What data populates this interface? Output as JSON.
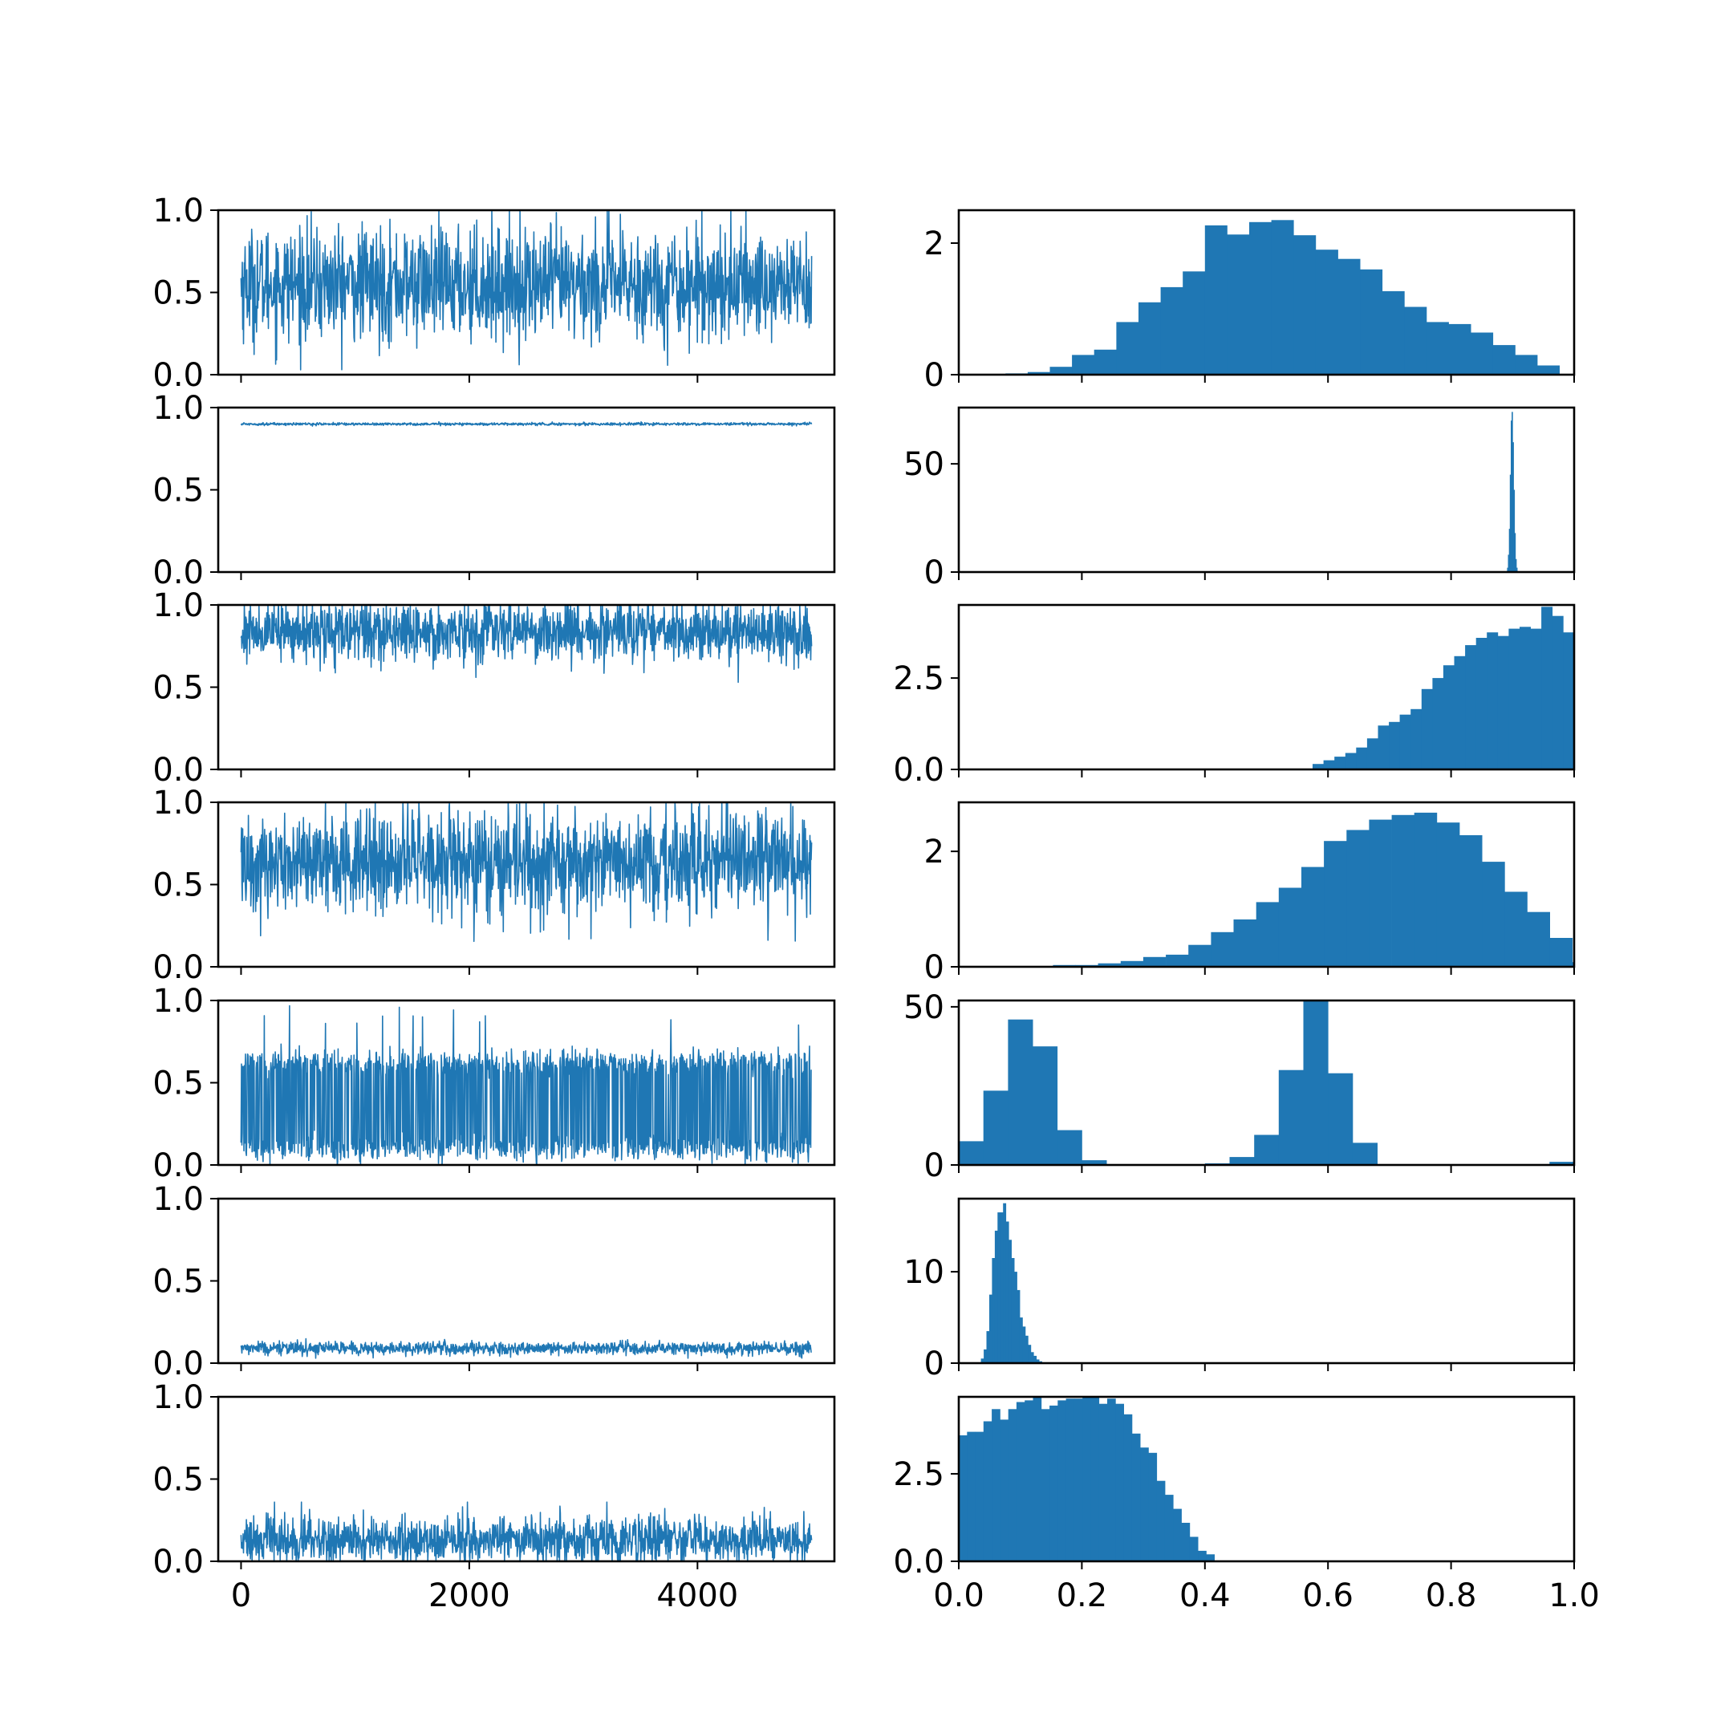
{
  "figure": {
    "layout": "7 rows x 2 columns; left column = MCMC traces, right column = histograms",
    "series_color": "#1f77b4"
  },
  "trace_axes": {
    "x_ticks": [
      "0",
      "2000",
      "4000"
    ],
    "y_ticks": [
      "0.0",
      "0.5",
      "1.0"
    ]
  },
  "hist_axes": {
    "x_ticks": [
      "0.0",
      "0.2",
      "0.4",
      "0.6",
      "0.8",
      "1.0"
    ]
  },
  "chart_data": [
    {
      "type": "line",
      "panel": "trace",
      "row": 1,
      "x_range": [
        0,
        5000
      ],
      "ylim": [
        0,
        1
      ],
      "mean": 0.55,
      "spread": 0.17,
      "low": 0.03,
      "high": 1.0,
      "samples": 5000
    },
    {
      "type": "bar",
      "panel": "histogram",
      "row": 1,
      "xlim": [
        0,
        1
      ],
      "ylim": [
        0,
        2.5
      ],
      "y_ticks": [
        "0",
        "2"
      ],
      "bin_start": 0.04,
      "bin_width": 0.036,
      "values": [
        0.01,
        0.02,
        0.04,
        0.12,
        0.3,
        0.38,
        0.8,
        1.1,
        1.33,
        1.57,
        2.27,
        2.13,
        2.32,
        2.35,
        2.12,
        1.9,
        1.76,
        1.6,
        1.27,
        1.03,
        0.8,
        0.77,
        0.64,
        0.45,
        0.3,
        0.14
      ]
    },
    {
      "type": "line",
      "panel": "trace",
      "row": 2,
      "x_range": [
        0,
        5000
      ],
      "ylim": [
        0,
        1
      ],
      "mean": 0.9,
      "spread": 0.004,
      "low": 0.885,
      "high": 0.915,
      "samples": 5000
    },
    {
      "type": "bar",
      "panel": "histogram",
      "row": 2,
      "xlim": [
        0,
        1
      ],
      "ylim": [
        0,
        76
      ],
      "y_ticks": [
        "0",
        "50"
      ],
      "bin_start": 0.891,
      "bin_width": 0.0015,
      "values": [
        2,
        8,
        20,
        45,
        70,
        74,
        60,
        38,
        18,
        6,
        2
      ]
    },
    {
      "type": "line",
      "panel": "trace",
      "row": 3,
      "x_range": [
        0,
        5000
      ],
      "ylim": [
        0,
        1
      ],
      "mean": 0.84,
      "spread": 0.09,
      "low": 0.53,
      "high": 1.0,
      "samples": 5000
    },
    {
      "type": "bar",
      "panel": "histogram",
      "row": 3,
      "xlim": [
        0,
        1
      ],
      "ylim": [
        0,
        4.5
      ],
      "y_ticks": [
        "0.0",
        "2.5"
      ],
      "bin_start": 0.575,
      "bin_width": 0.0177,
      "values": [
        0.15,
        0.25,
        0.35,
        0.45,
        0.6,
        0.85,
        1.2,
        1.3,
        1.5,
        1.65,
        2.2,
        2.5,
        2.85,
        3.1,
        3.4,
        3.6,
        3.75,
        3.65,
        3.85,
        3.9,
        3.85,
        4.45,
        4.2,
        3.75
      ]
    },
    {
      "type": "line",
      "panel": "trace",
      "row": 4,
      "x_range": [
        0,
        5000
      ],
      "ylim": [
        0,
        1
      ],
      "mean": 0.64,
      "spread": 0.16,
      "low": 0.08,
      "high": 1.0,
      "samples": 5000
    },
    {
      "type": "bar",
      "panel": "histogram",
      "row": 4,
      "xlim": [
        0,
        1
      ],
      "ylim": [
        0,
        2.85
      ],
      "y_ticks": [
        "0",
        "2"
      ],
      "bin_start": 0.153,
      "bin_width": 0.0367,
      "values": [
        0.03,
        0.03,
        0.06,
        0.1,
        0.17,
        0.21,
        0.38,
        0.6,
        0.82,
        1.12,
        1.37,
        1.73,
        2.18,
        2.37,
        2.55,
        2.63,
        2.67,
        2.5,
        2.28,
        1.82,
        1.3,
        0.95,
        0.5,
        0.08
      ]
    },
    {
      "type": "line",
      "panel": "trace",
      "row": 5,
      "x_range": [
        0,
        5000
      ],
      "ylim": [
        0,
        1
      ],
      "bimodal_modes": [
        0.1,
        0.62
      ],
      "max": 0.97,
      "samples": 5000
    },
    {
      "type": "bar",
      "panel": "histogram",
      "row": 5,
      "xlim": [
        0,
        1
      ],
      "ylim": [
        0,
        52
      ],
      "y_ticks": [
        "0",
        "50"
      ],
      "bin_start": 0.0,
      "bin_width": 0.04,
      "values": [
        7.5,
        23.5,
        46,
        37.5,
        11,
        1.5,
        0,
        0,
        0,
        0,
        0.5,
        2.5,
        9.5,
        30,
        52,
        29,
        7,
        0,
        0,
        0,
        0,
        0,
        0,
        0,
        1
      ]
    },
    {
      "type": "line",
      "panel": "trace",
      "row": 6,
      "x_range": [
        0,
        5000
      ],
      "ylim": [
        0,
        1
      ],
      "mean": 0.09,
      "spread": 0.02,
      "low": 0.03,
      "high": 0.2,
      "samples": 5000
    },
    {
      "type": "bar",
      "panel": "histogram",
      "row": 6,
      "xlim": [
        0,
        1
      ],
      "ylim": [
        0,
        18
      ],
      "y_ticks": [
        "0",
        "10"
      ],
      "bin_start": 0.036,
      "bin_width": 0.0045,
      "values": [
        0.5,
        1.5,
        3.5,
        7.5,
        11.5,
        14.5,
        16.5,
        16.5,
        17.5,
        15.5,
        13.5,
        11.5,
        10,
        8,
        5,
        4,
        3,
        2,
        1.2,
        0.8,
        0.4,
        0.2
      ]
    },
    {
      "type": "line",
      "panel": "trace",
      "row": 7,
      "x_range": [
        0,
        5000
      ],
      "ylim": [
        0,
        1
      ],
      "mean": 0.13,
      "spread": 0.07,
      "low": 0.0,
      "high": 0.36,
      "samples": 5000
    },
    {
      "type": "bar",
      "panel": "histogram",
      "row": 7,
      "xlim": [
        0,
        1
      ],
      "ylim": [
        0,
        4.7
      ],
      "y_ticks": [
        "0.0",
        "2.5"
      ],
      "bin_start": 0.0,
      "bin_width": 0.0134,
      "values": [
        3.6,
        3.7,
        3.7,
        4.0,
        4.35,
        4.05,
        4.35,
        4.55,
        4.6,
        5.05,
        4.35,
        4.45,
        4.6,
        4.65,
        4.65,
        4.8,
        4.7,
        4.5,
        4.65,
        4.5,
        4.2,
        3.65,
        3.25,
        3.1,
        2.3,
        1.9,
        1.5,
        1.1,
        0.7,
        0.3,
        0.2
      ]
    }
  ]
}
